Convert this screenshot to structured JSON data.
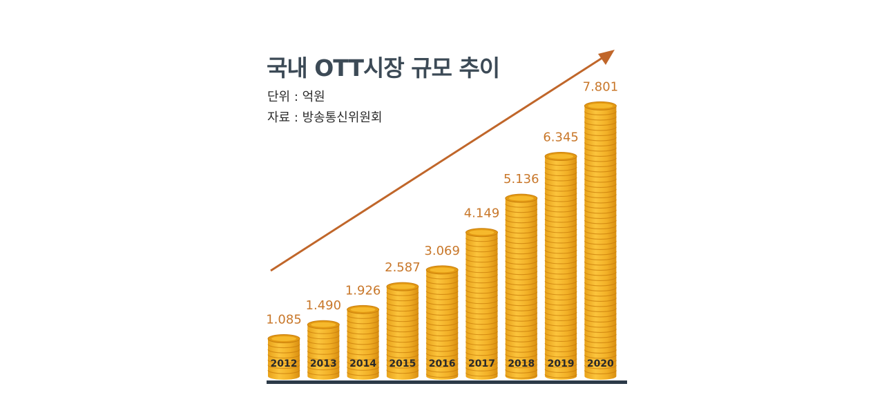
{
  "chart_data": {
    "type": "bar",
    "title": "국내 OTT시장 규모 추이",
    "unit_label": "단위 : 억원",
    "source_label": "자료 : 방송통신위원회",
    "categories": [
      "2012",
      "2013",
      "2014",
      "2015",
      "2016",
      "2017",
      "2018",
      "2019",
      "2020"
    ],
    "values": [
      1085,
      1490,
      1926,
      2587,
      3069,
      4149,
      5136,
      6345,
      7801
    ],
    "value_labels": [
      "1.085",
      "1.490",
      "1.926",
      "2.587",
      "3.069",
      "4.149",
      "5.136",
      "6.345",
      "7.801"
    ],
    "xlabel": "",
    "ylabel": "",
    "ylim": [
      0,
      8000
    ],
    "grid": false,
    "legend": "none",
    "trend_arrow": true
  },
  "colors": {
    "coin_face": "#f6b92c",
    "coin_edge": "#e39a14",
    "coin_dark": "#c97e0c",
    "label_value": "#c8772a",
    "arrow": "#c0662a",
    "baseline": "#2c3a48",
    "year_text": "#2a2a2a"
  }
}
